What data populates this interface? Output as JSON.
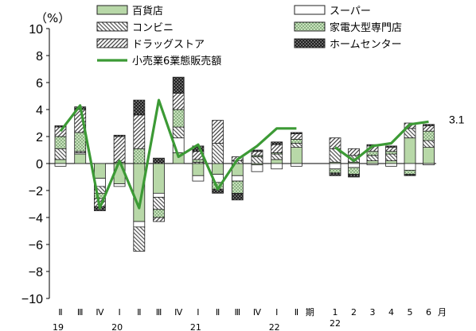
{
  "chart_data": {
    "type": "bar",
    "unit_label": "（%）",
    "ylim": [
      -10,
      10
    ],
    "yticks": [
      "10",
      "8",
      "6",
      "4",
      "2",
      "0",
      "−2",
      "−4",
      "−6",
      "−8",
      "−10"
    ],
    "categories": [
      "Ⅱ",
      "Ⅲ",
      "Ⅳ",
      "Ⅰ",
      "Ⅱ",
      "Ⅲ",
      "Ⅳ",
      "Ⅰ",
      "Ⅱ",
      "Ⅲ",
      "Ⅳ",
      "Ⅰ",
      "Ⅱ",
      "1",
      "2",
      "3",
      "4",
      "5",
      "6"
    ],
    "year_labels": [
      "19",
      "20",
      "21",
      "22",
      "22"
    ],
    "period_label": "期",
    "month_label": "月",
    "final_value_label": "3.1",
    "series": [
      {
        "name": "百貨店",
        "color": "#b8d8a8",
        "values": [
          0.3,
          0.7,
          -1.1,
          -1.5,
          -4.3,
          -2.2,
          0.8,
          -0.9,
          -0.8,
          -0.9,
          -0.1,
          0.3,
          1.2,
          0.1,
          0.1,
          0.2,
          0.2,
          1.9,
          1.2
        ]
      },
      {
        "name": "スーパー",
        "color": "#ffffff",
        "values": [
          -0.2,
          0.1,
          -0.6,
          -0.2,
          -0.4,
          -0.3,
          1.1,
          -0.4,
          -0.6,
          -0.4,
          -0.5,
          -0.4,
          -0.2,
          -0.4,
          -0.3,
          -0.1,
          -0.2,
          -0.5,
          -0.1
        ]
      },
      {
        "name": "コンビニ",
        "color": "#ffffff",
        "values": [
          0.8,
          0.1,
          -0.5,
          0.0,
          -1.8,
          -0.9,
          0.8,
          0.1,
          1.5,
          0.2,
          0.5,
          0.4,
          0.3,
          1.0,
          0.5,
          0.4,
          0.5,
          0.7,
          0.5
        ]
      },
      {
        "name": "家電大型専門店",
        "color": "#c9e2bd",
        "values": [
          0.9,
          1.4,
          -0.4,
          0.1,
          1.1,
          -0.6,
          1.3,
          0.2,
          -0.5,
          -0.9,
          0.1,
          0.1,
          0.3,
          -0.3,
          -0.5,
          0.3,
          0.2,
          -0.3,
          0.7
        ]
      },
      {
        "name": "ドラッグストア",
        "color": "#ffffff",
        "values": [
          0.7,
          1.7,
          -0.6,
          1.9,
          2.5,
          -0.3,
          1.2,
          0.6,
          1.7,
          0.3,
          0.3,
          0.6,
          0.4,
          0.8,
          0.5,
          0.4,
          0.3,
          0.4,
          0.4
        ]
      },
      {
        "name": "ホームセンター",
        "color": "#3a3a3a",
        "values": [
          0.1,
          0.2,
          -0.3,
          0.1,
          1.1,
          0.4,
          1.2,
          0.4,
          -0.3,
          -0.5,
          0.1,
          0.2,
          0.1,
          -0.2,
          -0.2,
          0.1,
          0.1,
          -0.1,
          0.1
        ]
      }
    ],
    "line": {
      "name": "小売業6業態販売額",
      "color": "#3c9a35",
      "values": [
        2.4,
        4.3,
        -3.3,
        0.2,
        -3.3,
        4.7,
        0.5,
        1.4,
        -1.9,
        0.3,
        1.3,
        2.6,
        2.6,
        1.2,
        0.2,
        1.3,
        1.5,
        2.9,
        3.1
      ]
    },
    "legend": [
      {
        "label": "百貨店",
        "pattern": "solid-green"
      },
      {
        "label": "スーパー",
        "pattern": "white"
      },
      {
        "label": "コンビニ",
        "pattern": "backslash"
      },
      {
        "label": "家電大型専門店",
        "pattern": "dots-green"
      },
      {
        "label": "ドラッグストア",
        "pattern": "slash"
      },
      {
        "label": "ホームセンター",
        "pattern": "dark-grid"
      },
      {
        "label": "小売業6業態販売額",
        "pattern": "line"
      }
    ]
  }
}
